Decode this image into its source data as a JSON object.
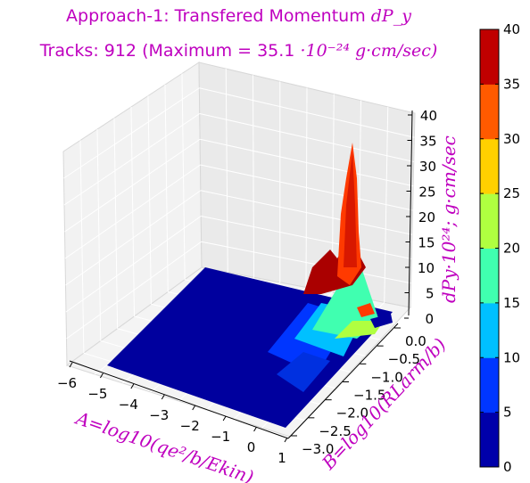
{
  "title_line1": "Approach-1: Transfered Momentum ",
  "title_line1_math": "dP_y",
  "title_line2": "Tracks: 912 (Maximum =  35.1 ",
  "title_line2_math": "·10⁻²⁴ g·cm/sec)",
  "colors": {
    "title": "#bf00bf",
    "colormap": [
      "#0000aa",
      "#0036ff",
      "#00c0ff",
      "#40ffb0",
      "#b0ff40",
      "#ffd000",
      "#ff5a00",
      "#c00000"
    ]
  },
  "chart_data": {
    "type": "surface3d",
    "xlabel": "A=log10(qe²/b/Ekin)",
    "ylabel": "B=log10(RLarm/b)",
    "zlabel": "dPy·10²⁴; g·cm/sec",
    "x_ticks": [
      "−6",
      "−5",
      "−4",
      "−3",
      "−2",
      "−1",
      "0",
      "1"
    ],
    "y_ticks": [
      "0.0",
      "−0.5",
      "−1.0",
      "−1.5",
      "−2.0",
      "−2.5",
      "−3.0"
    ],
    "z_ticks": [
      "0",
      "5",
      "10",
      "15",
      "20",
      "25",
      "30",
      "35",
      "40"
    ],
    "xlim": [
      -6,
      1
    ],
    "ylim": [
      -3,
      0
    ],
    "zlim": [
      0,
      40
    ],
    "colorbar_ticks": [
      "0",
      "5",
      "10",
      "15",
      "20",
      "25",
      "30",
      "35",
      "40"
    ],
    "colorbar_range": [
      0,
      40
    ],
    "max_value": 35.1,
    "tracks": 912,
    "grid": true
  }
}
